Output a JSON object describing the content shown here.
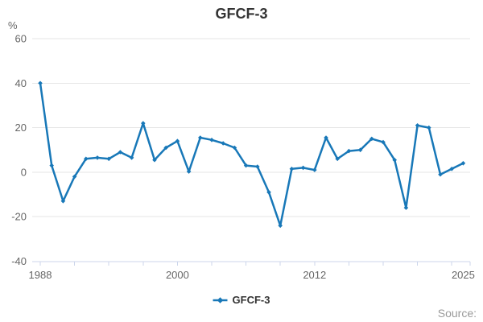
{
  "title": "GFCF-3",
  "y_axis": {
    "unit": "%",
    "ticks": [
      60,
      40,
      20,
      0,
      -20,
      -40
    ],
    "min": -40,
    "max": 60
  },
  "x_axis": {
    "tick_labels": [
      "1988",
      "2000",
      "2012",
      "2025"
    ],
    "tick_years": [
      1988,
      2000,
      2012,
      2025
    ],
    "tick_interval_years": 3,
    "min": 1988,
    "max": 2025
  },
  "legend": {
    "label": "GFCF-3"
  },
  "credits": {
    "label": "Source:"
  },
  "colors": {
    "series": "#1878b8",
    "grid": "#e6e6e6",
    "axis": "#ccd6eb",
    "tick_label": "#666666",
    "title": "#333333",
    "legend_text": "#333333",
    "credits": "#999999",
    "background": "#ffffff"
  },
  "chart_data": {
    "type": "line",
    "title": "GFCF-3",
    "xlabel": "",
    "ylabel": "%",
    "ylim": [
      -40,
      60
    ],
    "xlim": [
      1988,
      2025
    ],
    "grid": true,
    "legend_position": "bottom",
    "marker": "diamond",
    "series": [
      {
        "name": "GFCF-3",
        "x": [
          1988,
          1989,
          1990,
          1991,
          1992,
          1993,
          1994,
          1995,
          1996,
          1997,
          1998,
          1999,
          2000,
          2001,
          2002,
          2003,
          2004,
          2005,
          2006,
          2007,
          2008,
          2009,
          2010,
          2011,
          2012,
          2013,
          2014,
          2015,
          2016,
          2017,
          2018,
          2019,
          2020,
          2021,
          2022,
          2023,
          2024,
          2025
        ],
        "values": [
          40,
          3,
          -13,
          -2,
          6,
          6.5,
          6,
          9,
          6.5,
          22,
          5.5,
          11,
          14,
          0.3,
          15.5,
          14.5,
          13,
          11,
          3,
          2.5,
          -9,
          -24,
          1.5,
          2,
          1,
          15.5,
          6,
          9.5,
          10,
          15,
          13.5,
          5.5,
          -16,
          21,
          20,
          -1,
          1.5,
          4
        ]
      }
    ]
  }
}
